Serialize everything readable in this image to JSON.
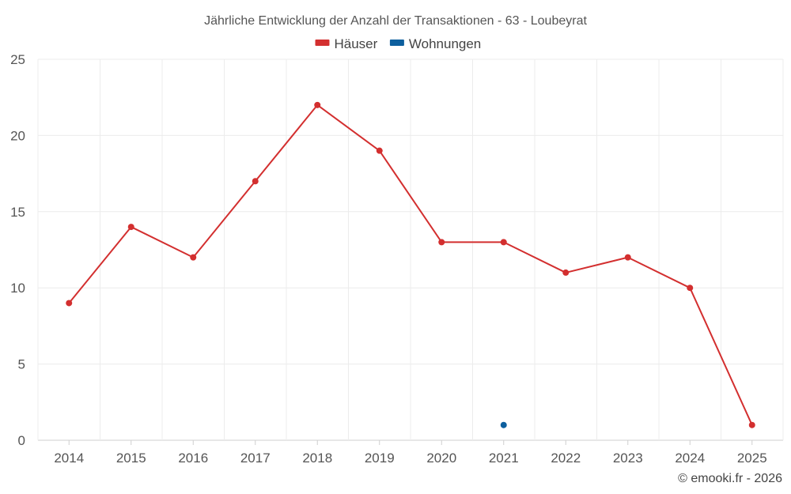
{
  "chart_data": {
    "type": "line",
    "title": "Jährliche Entwicklung der Anzahl der Transaktionen - 63 - Loubeyrat",
    "xlabel": "",
    "ylabel": "",
    "categories": [
      "2014",
      "2015",
      "2016",
      "2017",
      "2018",
      "2019",
      "2020",
      "2021",
      "2022",
      "2023",
      "2024",
      "2025"
    ],
    "ylim": [
      0,
      25
    ],
    "yticks": [
      0,
      5,
      10,
      15,
      20,
      25
    ],
    "grid": true,
    "legend_position": "top-center",
    "series": [
      {
        "name": "Häuser",
        "color": "#d32f2f",
        "values": [
          9,
          14,
          12,
          17,
          22,
          19,
          13,
          13,
          11,
          12,
          10,
          1
        ]
      },
      {
        "name": "Wohnungen",
        "color": "#0d5f9e",
        "values": [
          null,
          null,
          null,
          null,
          null,
          null,
          null,
          1,
          null,
          null,
          null,
          null
        ]
      }
    ]
  },
  "credit": "© emooki.fr - 2026"
}
